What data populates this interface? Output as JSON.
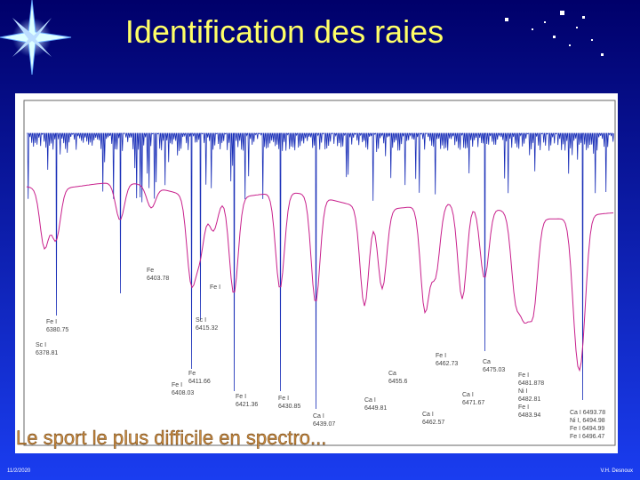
{
  "header": {
    "title": "Identification des raies"
  },
  "spectrum": {
    "labels": [
      [
        "Fe",
        "6403.78"
      ],
      [
        "Fe I"
      ],
      [
        "Fe I",
        "6380.75"
      ],
      [
        "Sc I",
        "6378.81"
      ],
      [
        "Sc I",
        "6415.32"
      ],
      [
        "Fe",
        "6411.66"
      ],
      [
        "Fe I",
        "6408.03"
      ],
      [
        "Fe I",
        "6421.36"
      ],
      [
        "Fe I",
        "6430.85"
      ],
      [
        "Ca I",
        "6439.07"
      ],
      [
        "Ca",
        "6455.6"
      ],
      [
        "Ca I",
        "6449.81"
      ],
      [
        "Ca I",
        "6462.57"
      ],
      [
        "Fe I",
        "6462.73"
      ],
      [
        "Ca I",
        "6471.67"
      ],
      [
        "Ca",
        "6475.03"
      ],
      [
        "Fe I",
        "6481.878",
        "Ni I",
        "6482.81",
        "Fe I",
        "6483.94"
      ],
      [
        "Ca I 6493.78",
        "Ni I, 6494.98",
        "Fe I 6494.99",
        "Fe I 6496.47"
      ]
    ]
  },
  "caption": "Le sport le plus difficile en spectro...",
  "footer": {
    "date": "11/2/2020",
    "author": "V.H. Desnoux"
  }
}
